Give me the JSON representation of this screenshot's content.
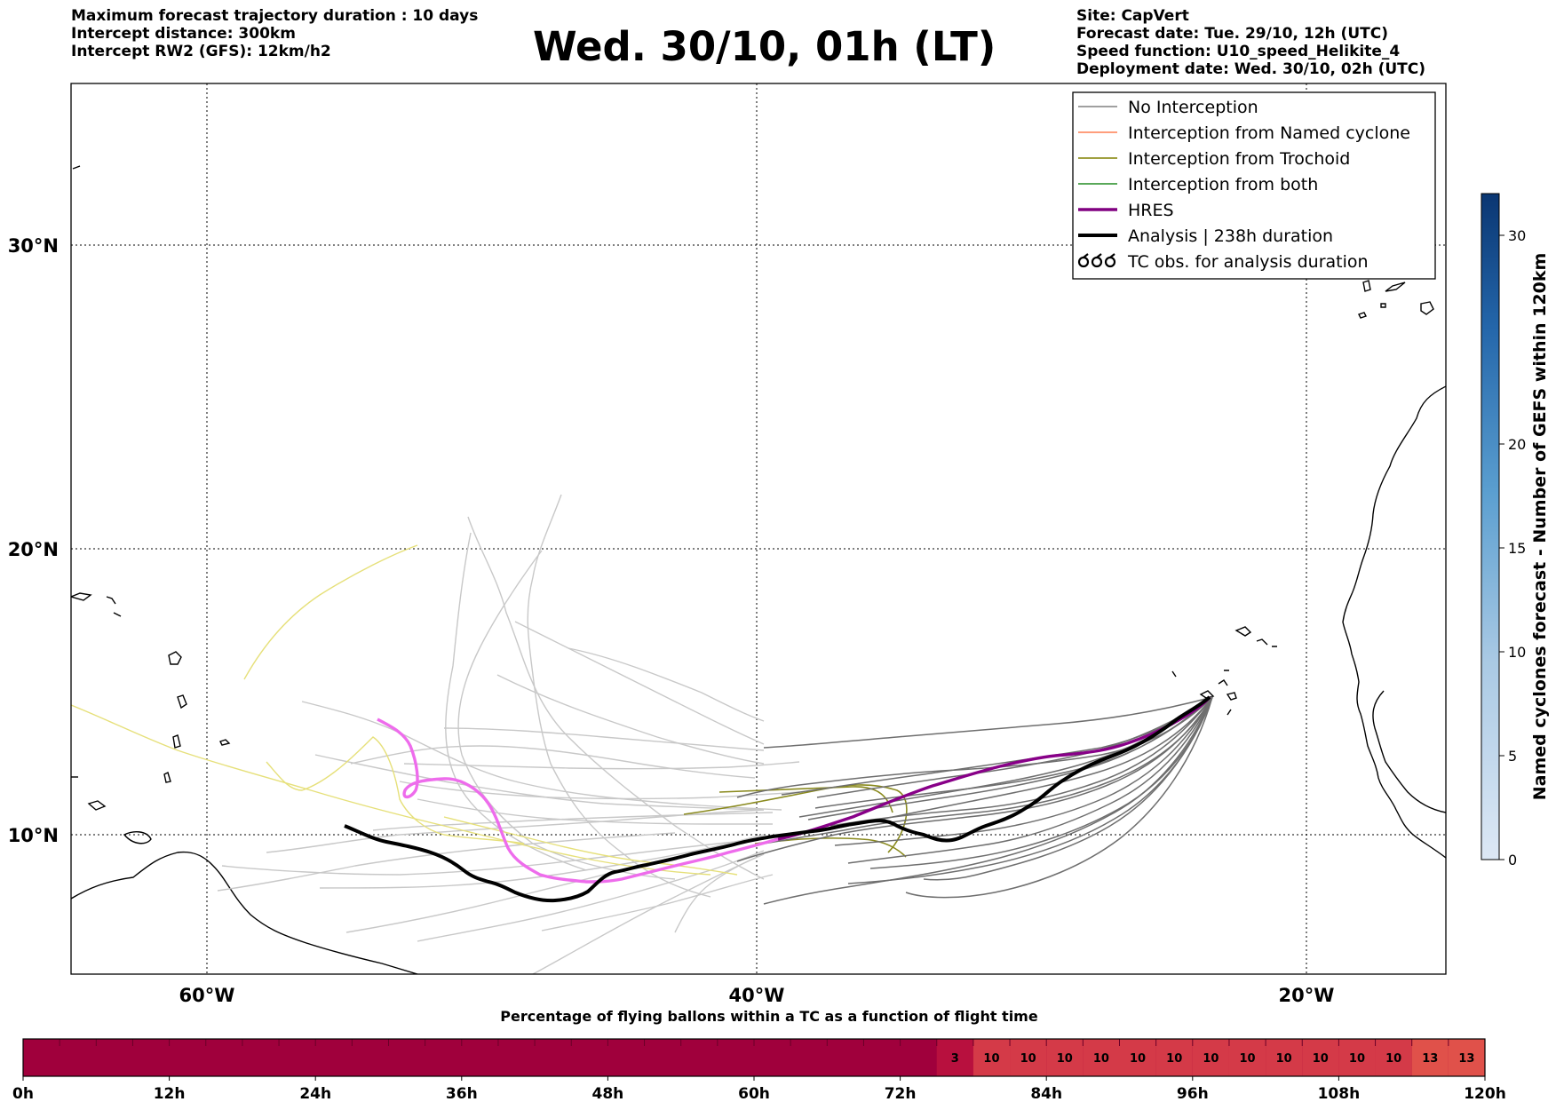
{
  "header": {
    "left_lines": [
      "Maximum forecast trajectory duration : 10 days",
      "Intercept distance: 300km",
      "Intercept RW2 (GFS):  12km/h2"
    ],
    "right_lines": [
      "Site: CapVert",
      "Forecast date: Tue. 29/10, 12h (UTC)",
      "Speed function: U10_speed_Helikite_4",
      "Deployment date: Wed. 30/10, 02h (UTC)"
    ],
    "title": "Wed. 30/10, 01h (LT)"
  },
  "map": {
    "lon_ticks": [
      "60°W",
      "40°W",
      "20°W"
    ],
    "lat_ticks": [
      "30°N",
      "20°N",
      "10°N"
    ]
  },
  "legend": {
    "items": [
      {
        "label": "No Interception",
        "color": "#808080"
      },
      {
        "label": "Interception from Named cyclone",
        "color": "#ff7f50"
      },
      {
        "label": "Interception from Trochoid",
        "color": "#808000"
      },
      {
        "label": "Interception from both",
        "color": "#228b22"
      },
      {
        "label": "HRES",
        "color": "#800080"
      },
      {
        "label": "Analysis | 238h duration",
        "color": "#000000"
      },
      {
        "label": "TC obs. for analysis duration",
        "icon": "cyclone-symbol-icon"
      }
    ]
  },
  "colorbar": {
    "label": "Named cyclones forecast - Number of GEFS within 120km",
    "ticks": [
      "0",
      "5",
      "10",
      "15",
      "20",
      "30"
    ]
  },
  "timeline": {
    "title": "Percentage of flying ballons within a TC as a function of flight time",
    "ticks": [
      "0h",
      "12h",
      "24h",
      "36h",
      "48h",
      "60h",
      "72h",
      "84h",
      "96h",
      "108h",
      "120h"
    ],
    "cell_values": [
      "3",
      "10",
      "10",
      "10",
      "10",
      "10",
      "10",
      "10",
      "10",
      "10",
      "10",
      "10",
      "10",
      "13",
      "13"
    ]
  }
}
